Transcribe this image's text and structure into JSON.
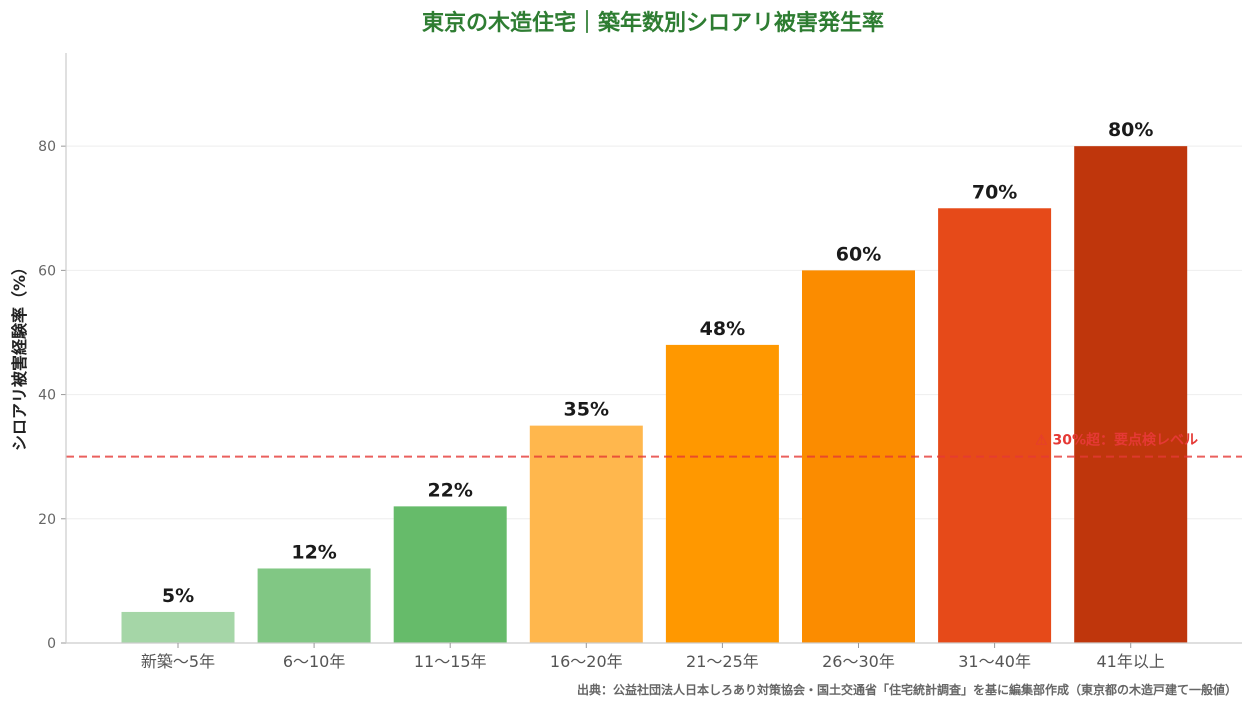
{
  "chart_data": {
    "type": "bar",
    "title": "東京の木造住宅｜築年数別シロアリ被害発生率",
    "ylabel": "シロアリ被害経験率（%）",
    "xlabel": "",
    "categories": [
      "新築〜5年",
      "6〜10年",
      "11〜15年",
      "16〜20年",
      "21〜25年",
      "26〜30年",
      "31〜40年",
      "41年以上"
    ],
    "values": [
      5,
      12,
      22,
      35,
      48,
      60,
      70,
      80
    ],
    "data_labels": [
      "5%",
      "12%",
      "22%",
      "35%",
      "48%",
      "60%",
      "70%",
      "80%"
    ],
    "colors": [
      "#a5d6a7",
      "#81c784",
      "#66bb6a",
      "#ffb74d",
      "#ff9800",
      "#fb8c00",
      "#e64a19",
      "#bf360c"
    ],
    "ylim": [
      0,
      95
    ],
    "yticks": [
      0,
      20,
      40,
      60,
      80
    ],
    "grid": true,
    "threshold": {
      "value": 30,
      "label": "⚠ 30%超：要点検レベル",
      "color": "#e53935"
    },
    "source": "出典：公益社団法人日本しろあり対策協会・国土交通省「住宅統計調査」を基に編集部作成（東京都の木造戸建て一般値）",
    "title_color": "#2e7d32"
  }
}
